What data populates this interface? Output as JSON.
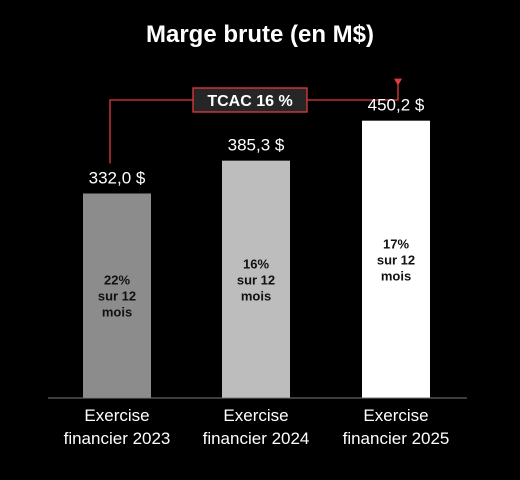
{
  "chart_data": {
    "type": "bar",
    "title": "Marge brute (en M$)",
    "categories": [
      [
        "Exercise",
        "financier 2023"
      ],
      [
        "Exercise",
        "financier 2024"
      ],
      [
        "Exercise",
        "financier 2025"
      ]
    ],
    "values": [
      332.0,
      385.3,
      450.2
    ],
    "value_labels": [
      "332,0 $",
      "385,3 $",
      "450,2 $"
    ],
    "bar_notes": [
      [
        "22%",
        "sur 12",
        "mois"
      ],
      [
        "16%",
        "sur 12",
        "mois"
      ],
      [
        "17%",
        "sur 12",
        "mois"
      ]
    ],
    "bar_colors": [
      "#8c8c8c",
      "#bdbdbd",
      "#ffffff"
    ],
    "note_color": "#111111",
    "annotation": {
      "label": "TCAC 16 %",
      "from_index": 0,
      "to_index": 2,
      "line_color": "#e23b3b"
    },
    "ylim": [
      0,
      500
    ],
    "grid": false,
    "legend": "none",
    "xlabel": "",
    "ylabel": ""
  }
}
